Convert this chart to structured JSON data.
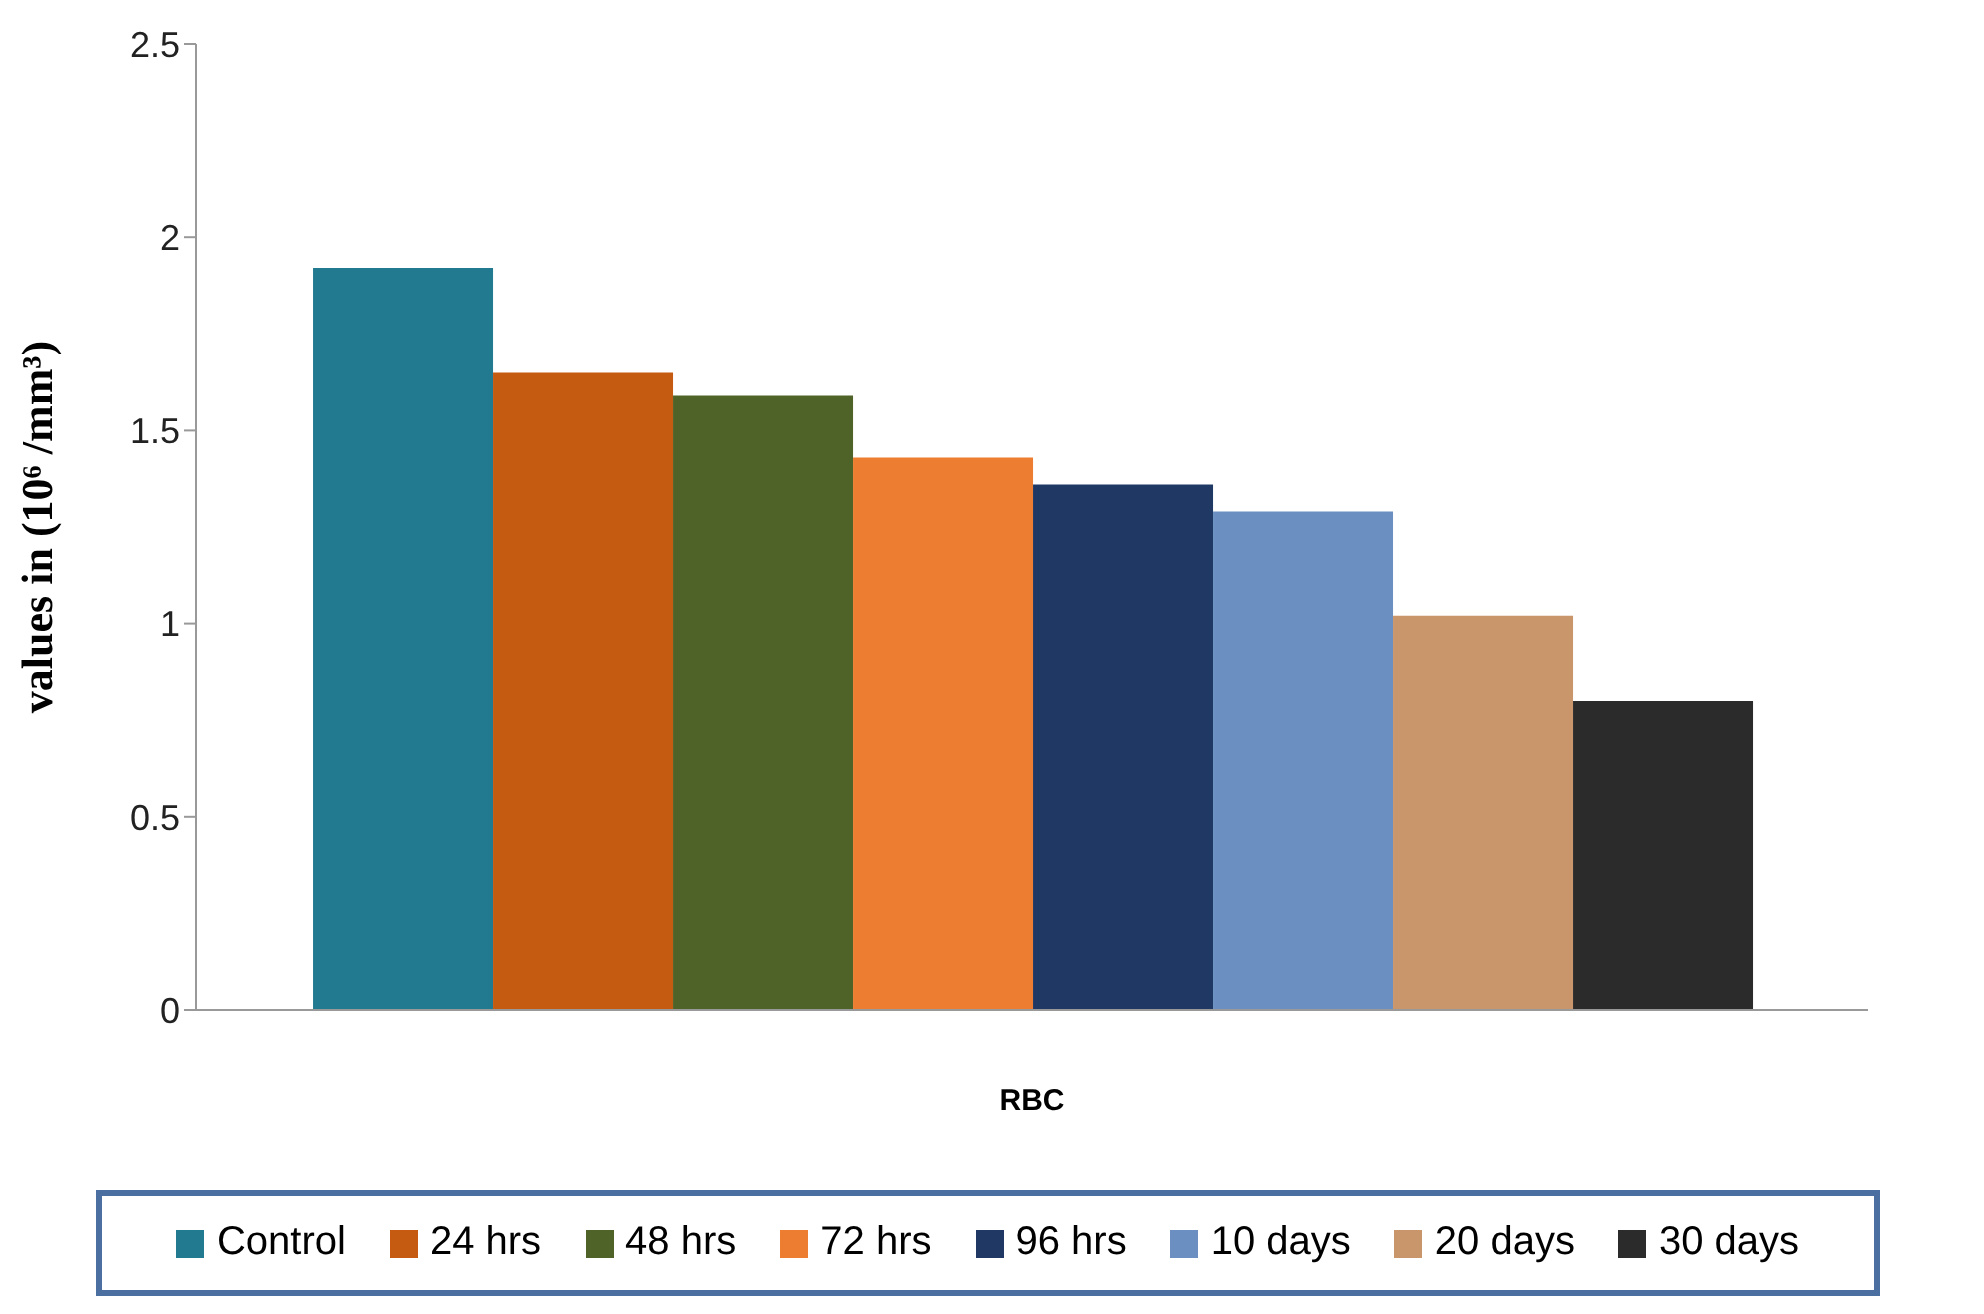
{
  "chart_data": {
    "type": "bar",
    "xlabel": "RBC",
    "ylabel": "values in (10⁶ /mm³)",
    "categories": [
      null
    ],
    "series": [
      {
        "name": "Control",
        "color": "#217a90",
        "values": [
          1.92
        ]
      },
      {
        "name": "24 hrs",
        "color": "#c55a11",
        "values": [
          1.65
        ]
      },
      {
        "name": "48 hrs",
        "color": "#4f6228",
        "values": [
          1.59
        ]
      },
      {
        "name": "72 hrs",
        "color": "#ed7d31",
        "values": [
          1.43
        ]
      },
      {
        "name": "96 hrs",
        "color": "#203864",
        "values": [
          1.36
        ]
      },
      {
        "name": "10 days",
        "color": "#6a8fc0",
        "values": [
          1.29
        ]
      },
      {
        "name": "20 days",
        "color": "#c9956a",
        "values": [
          1.02
        ]
      },
      {
        "name": "30 days",
        "color": "#2b2b2b",
        "values": [
          0.8
        ]
      }
    ],
    "ylim": [
      0,
      2.5
    ],
    "yticks": [
      0,
      0.5,
      1,
      1.5,
      2,
      2.5
    ],
    "grid": false,
    "legend": "bottom"
  }
}
